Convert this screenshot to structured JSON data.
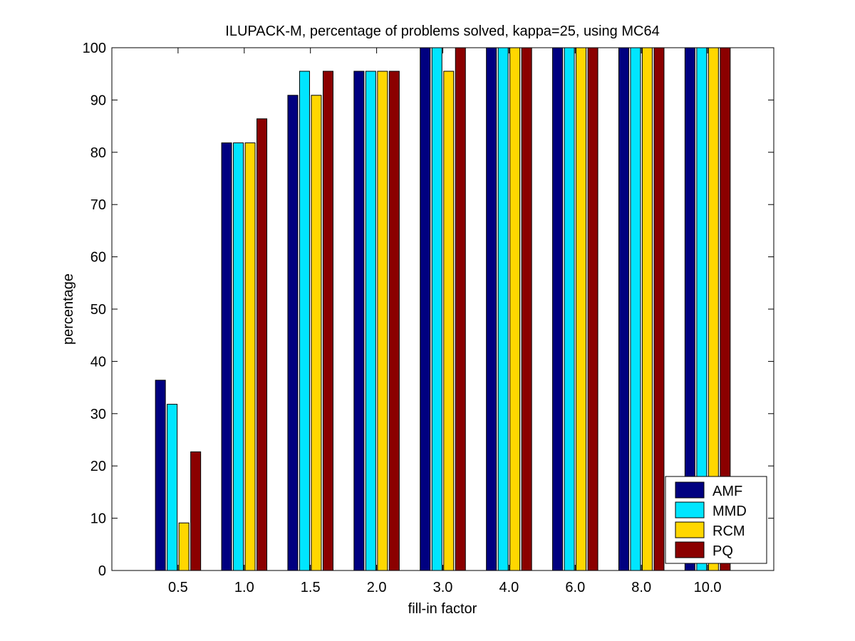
{
  "chart_data": {
    "type": "bar",
    "title": "ILUPACK-M, percentage of problems solved, kappa=25, using MC64",
    "xlabel": "fill-in factor",
    "ylabel": "percentage",
    "ylim": [
      0,
      100
    ],
    "yticks": [
      0,
      10,
      20,
      30,
      40,
      50,
      60,
      70,
      80,
      90,
      100
    ],
    "categories": [
      "0.5",
      "1.0",
      "1.5",
      "2.0",
      "3.0",
      "4.0",
      "6.0",
      "8.0",
      "10.0"
    ],
    "series": [
      {
        "name": "AMF",
        "color": "#000080",
        "values": [
          36.4,
          81.8,
          90.9,
          95.5,
          100,
          100,
          100,
          100,
          100
        ]
      },
      {
        "name": "MMD",
        "color": "#00E5FF",
        "values": [
          31.8,
          81.8,
          95.5,
          95.5,
          100,
          100,
          100,
          100,
          100
        ]
      },
      {
        "name": "RCM",
        "color": "#FFD700",
        "values": [
          9.1,
          81.8,
          90.9,
          95.5,
          95.5,
          100,
          100,
          100,
          100
        ]
      },
      {
        "name": "PQ",
        "color": "#8B0000",
        "values": [
          22.7,
          86.4,
          95.5,
          95.5,
          100,
          100,
          100,
          100,
          100
        ]
      }
    ],
    "grid": false,
    "legend_position": "bottom-right"
  }
}
